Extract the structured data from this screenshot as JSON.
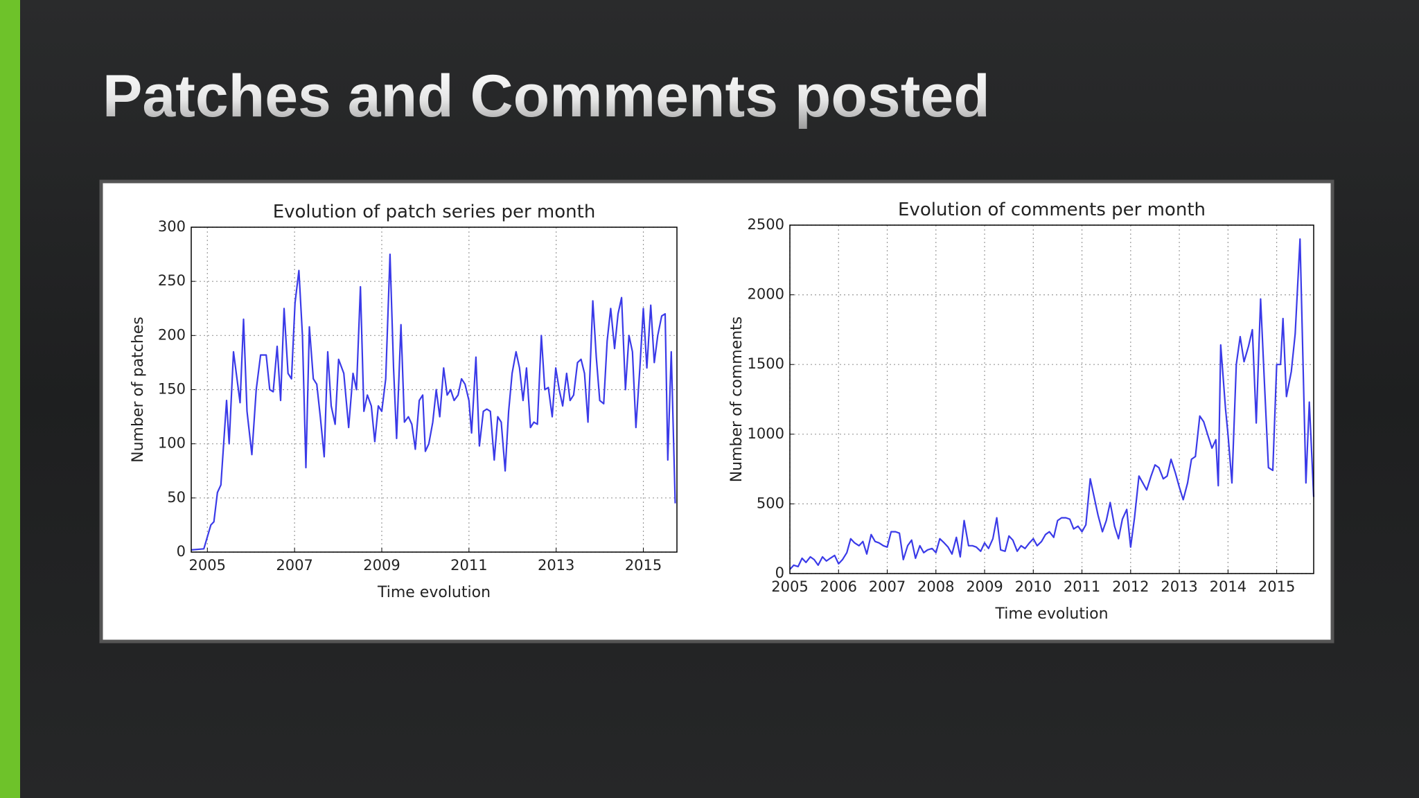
{
  "slide_title": "Patches and Comments posted",
  "chart_data": [
    {
      "type": "line",
      "title": "Evolution of patch series per month",
      "xlabel": "Time evolution",
      "ylabel": "Number of patches",
      "xlim": [
        2004.63,
        2015.77
      ],
      "xticks": [
        2005,
        2007,
        2009,
        2011,
        2013,
        2015
      ],
      "ylim": [
        0,
        300
      ],
      "yticks": [
        0,
        50,
        100,
        150,
        200,
        250,
        300
      ],
      "grid": true,
      "color": "#3a3ae8",
      "x": [
        2004.63,
        2004.92,
        2005.08,
        2005.15,
        2005.23,
        2005.31,
        2005.44,
        2005.5,
        2005.6,
        2005.75,
        2005.83,
        2005.91,
        2006.02,
        2006.12,
        2006.22,
        2006.35,
        2006.43,
        2006.51,
        2006.6,
        2006.68,
        2006.76,
        2006.85,
        2006.93,
        2007.01,
        2007.1,
        2007.18,
        2007.26,
        2007.34,
        2007.43,
        2007.51,
        2007.59,
        2007.68,
        2007.76,
        2007.84,
        2007.93,
        2008.01,
        2008.13,
        2008.24,
        2008.34,
        2008.42,
        2008.51,
        2008.59,
        2008.67,
        2008.76,
        2008.84,
        2008.92,
        2009.0,
        2009.09,
        2009.19,
        2009.27,
        2009.34,
        2009.44,
        2009.52,
        2009.61,
        2009.69,
        2009.77,
        2009.86,
        2009.94,
        2010.0,
        2010.08,
        2010.17,
        2010.25,
        2010.33,
        2010.42,
        2010.5,
        2010.58,
        2010.66,
        2010.75,
        2010.83,
        2010.91,
        2011.0,
        2011.06,
        2011.16,
        2011.24,
        2011.33,
        2011.41,
        2011.49,
        2011.58,
        2011.66,
        2011.74,
        2011.83,
        2011.91,
        2011.99,
        2012.08,
        2012.16,
        2012.24,
        2012.32,
        2012.41,
        2012.49,
        2012.57,
        2012.66,
        2012.74,
        2012.82,
        2012.91,
        2012.99,
        2013.07,
        2013.15,
        2013.24,
        2013.32,
        2013.4,
        2013.49,
        2013.57,
        2013.65,
        2013.73,
        2013.84,
        2013.92,
        2014.0,
        2014.09,
        2014.17,
        2014.25,
        2014.34,
        2014.42,
        2014.5,
        2014.59,
        2014.67,
        2014.75,
        2014.83,
        2014.92,
        2015.0,
        2015.08,
        2015.17,
        2015.25,
        2015.33,
        2015.42,
        2015.5,
        2015.56,
        2015.64,
        2015.73
      ],
      "values": [
        2,
        3,
        25,
        28,
        55,
        62,
        140,
        100,
        185,
        138,
        215,
        130,
        90,
        150,
        182,
        182,
        150,
        148,
        190,
        140,
        225,
        165,
        160,
        230,
        260,
        200,
        78,
        208,
        160,
        155,
        125,
        88,
        185,
        135,
        118,
        178,
        165,
        115,
        165,
        150,
        245,
        130,
        145,
        135,
        102,
        135,
        130,
        160,
        275,
        170,
        105,
        210,
        120,
        125,
        118,
        95,
        140,
        145,
        93,
        100,
        120,
        150,
        125,
        170,
        145,
        150,
        140,
        145,
        160,
        155,
        140,
        110,
        180,
        98,
        130,
        132,
        130,
        85,
        125,
        120,
        75,
        130,
        165,
        185,
        170,
        140,
        170,
        115,
        120,
        118,
        200,
        150,
        152,
        125,
        170,
        150,
        135,
        165,
        140,
        145,
        175,
        178,
        165,
        120,
        232,
        180,
        140,
        137,
        195,
        225,
        188,
        220,
        235,
        150,
        200,
        185,
        115,
        170,
        225,
        170,
        228,
        175,
        200,
        218,
        220,
        85,
        185,
        45
      ]
    },
    {
      "type": "line",
      "title": "Evolution of comments per month",
      "xlabel": "Time evolution",
      "ylabel": "Number of comments",
      "xlim": [
        2005,
        2015.76
      ],
      "xticks": [
        2005,
        2006,
        2007,
        2008,
        2009,
        2010,
        2011,
        2012,
        2013,
        2014,
        2015
      ],
      "ylim": [
        0,
        2500
      ],
      "yticks": [
        0,
        500,
        1000,
        1500,
        2000,
        2500
      ],
      "grid": true,
      "color": "#3a3ae8",
      "x": [
        2005.0,
        2005.08,
        2005.17,
        2005.25,
        2005.33,
        2005.42,
        2005.5,
        2005.58,
        2005.67,
        2005.75,
        2005.83,
        2005.92,
        2006.0,
        2006.08,
        2006.17,
        2006.25,
        2006.33,
        2006.42,
        2006.5,
        2006.58,
        2006.67,
        2006.75,
        2006.83,
        2006.92,
        2007.0,
        2007.08,
        2007.17,
        2007.25,
        2007.33,
        2007.42,
        2007.5,
        2007.58,
        2007.67,
        2007.75,
        2007.83,
        2007.92,
        2008.0,
        2008.08,
        2008.17,
        2008.25,
        2008.33,
        2008.42,
        2008.5,
        2008.58,
        2008.67,
        2008.75,
        2008.83,
        2008.92,
        2009.0,
        2009.08,
        2009.17,
        2009.25,
        2009.33,
        2009.42,
        2009.5,
        2009.58,
        2009.67,
        2009.75,
        2009.83,
        2009.92,
        2010.0,
        2010.08,
        2010.17,
        2010.25,
        2010.33,
        2010.42,
        2010.5,
        2010.58,
        2010.67,
        2010.75,
        2010.83,
        2010.92,
        2011.0,
        2011.08,
        2011.17,
        2011.25,
        2011.33,
        2011.42,
        2011.5,
        2011.58,
        2011.67,
        2011.75,
        2011.83,
        2011.92,
        2012.0,
        2012.08,
        2012.17,
        2012.25,
        2012.33,
        2012.42,
        2012.5,
        2012.58,
        2012.67,
        2012.75,
        2012.83,
        2012.92,
        2013.0,
        2013.08,
        2013.17,
        2013.25,
        2013.33,
        2013.42,
        2013.5,
        2013.58,
        2013.67,
        2013.75,
        2013.8,
        2013.85,
        2013.95,
        2014.0,
        2014.08,
        2014.17,
        2014.25,
        2014.33,
        2014.42,
        2014.5,
        2014.58,
        2014.67,
        2014.75,
        2014.83,
        2014.92,
        2015.0,
        2015.08,
        2015.13,
        2015.2,
        2015.3,
        2015.38,
        2015.48,
        2015.6,
        2015.67,
        2015.76
      ],
      "values": [
        30,
        60,
        50,
        110,
        80,
        120,
        100,
        60,
        120,
        90,
        110,
        130,
        70,
        100,
        150,
        250,
        220,
        200,
        230,
        140,
        280,
        230,
        220,
        200,
        190,
        300,
        300,
        290,
        100,
        200,
        240,
        110,
        200,
        150,
        170,
        180,
        150,
        250,
        220,
        190,
        140,
        260,
        120,
        380,
        200,
        200,
        190,
        160,
        220,
        180,
        250,
        400,
        170,
        160,
        270,
        240,
        160,
        200,
        180,
        220,
        250,
        200,
        230,
        280,
        300,
        260,
        380,
        400,
        400,
        390,
        320,
        340,
        300,
        350,
        680,
        550,
        420,
        300,
        380,
        510,
        340,
        250,
        390,
        460,
        190,
        400,
        700,
        650,
        600,
        700,
        780,
        760,
        680,
        700,
        820,
        720,
        620,
        530,
        650,
        820,
        840,
        1130,
        1090,
        1000,
        900,
        960,
        630,
        1640,
        1180,
        1000,
        650,
        1500,
        1700,
        1520,
        1630,
        1750,
        1080,
        1970,
        1360,
        760,
        740,
        1500,
        1500,
        1830,
        1270,
        1450,
        1720,
        2400,
        650,
        1230,
        550
      ]
    }
  ]
}
